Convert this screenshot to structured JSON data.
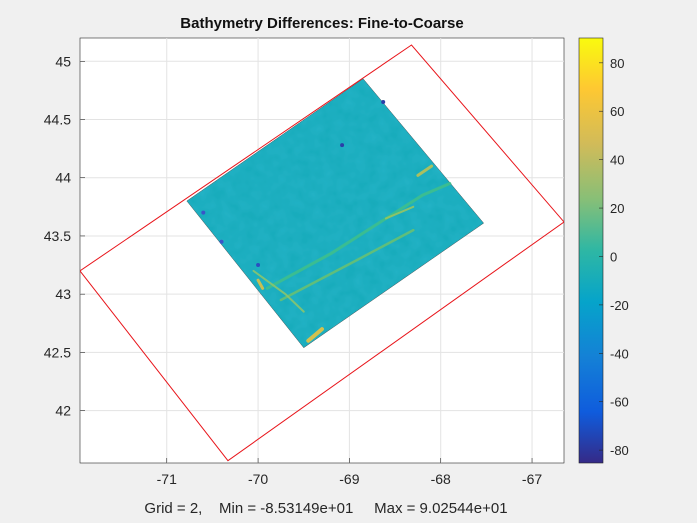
{
  "chart_data": {
    "type": "heatmap",
    "title": "Bathymetry Differences: Fine-to-Coarse",
    "xlabel": "Grid = 2,    Min = -8.53149e+01     Max = 9.02544e+01",
    "ylabel": "",
    "xlim": [
      -71.95,
      -66.65
    ],
    "ylim": [
      41.55,
      45.2
    ],
    "xticks": [
      -71,
      -70,
      -69,
      -68,
      -67
    ],
    "yticks": [
      42,
      42.5,
      43,
      43.5,
      44,
      44.5,
      45
    ],
    "grid": true,
    "colormap": "parula",
    "clim": [
      -85.3149,
      90.2544
    ],
    "colorbar_ticks": [
      -80,
      -60,
      -40,
      -20,
      0,
      20,
      40,
      60,
      80
    ],
    "coarse_grid_outline": {
      "color": "#e8141a",
      "x": [
        -71.95,
        -68.32,
        -66.65,
        -70.33
      ],
      "y": [
        43.2,
        45.14,
        43.62,
        41.57
      ]
    },
    "fine_grid_region": {
      "x": [
        -70.78,
        -68.85,
        -67.53,
        -69.5
      ],
      "y": [
        43.8,
        44.85,
        43.61,
        42.54
      ]
    },
    "value_range": {
      "min": -85.3149,
      "max": 90.2544
    }
  }
}
